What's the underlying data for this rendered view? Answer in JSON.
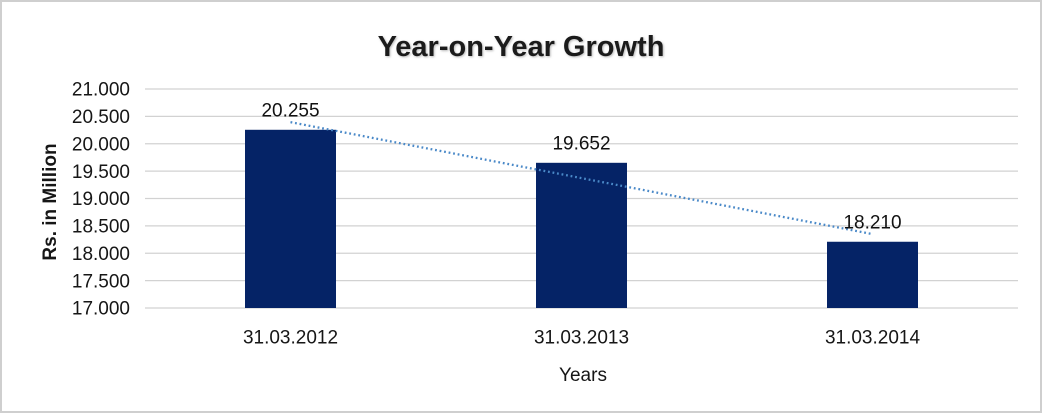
{
  "window": {
    "background": "#ffffff",
    "border_color": "#cfcfcf"
  },
  "chart_data": {
    "type": "bar",
    "title": "Year-on-Year Growth",
    "xlabel": "Years",
    "ylabel": "Rs. in Million",
    "categories": [
      "31.03.2012",
      "31.03.2013",
      "31.03.2014"
    ],
    "values": [
      20.255,
      19.652,
      18.21
    ],
    "data_labels": [
      "20.255",
      "19.652",
      "18.210"
    ],
    "y_ticks": [
      "21.000",
      "20.500",
      "20.000",
      "19.500",
      "19.000",
      "18.500",
      "18.000",
      "17.500",
      "17.000"
    ],
    "ylim": [
      17,
      21
    ],
    "y_step": 0.5,
    "grid": true,
    "legend": "none",
    "trendline": {
      "type": "linear",
      "style": "dotted",
      "color": "#4a89c8"
    },
    "colors": {
      "bar": "#052366",
      "gridline": "#d2d2d2",
      "tick_text": "#161616",
      "label_text": "#111111",
      "title_text": "#1b1b1b"
    }
  }
}
